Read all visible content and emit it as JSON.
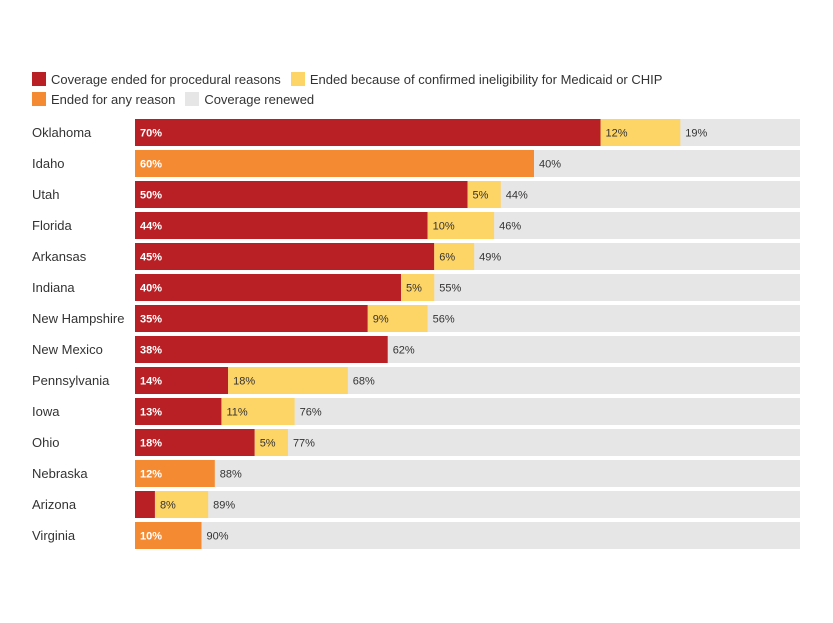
{
  "chart_data": {
    "type": "bar",
    "orientation": "horizontal",
    "stacked": true,
    "legend_position": "top-left",
    "colors": {
      "procedural": "#b82025",
      "ineligible": "#fdd466",
      "any_reason": "#f48b33",
      "renewed": "#e6e6e6"
    },
    "legend": [
      {
        "key": "procedural",
        "label": "Coverage ended for procedural reasons"
      },
      {
        "key": "ineligible",
        "label": "Ended because of confirmed ineligibility for Medicaid or CHIP"
      },
      {
        "key": "any_reason",
        "label": "Ended for any reason"
      },
      {
        "key": "renewed",
        "label": "Coverage renewed"
      }
    ],
    "categories": [
      "Oklahoma",
      "Idaho",
      "Utah",
      "Florida",
      "Arkansas",
      "Indiana",
      "New Hampshire",
      "New Mexico",
      "Pennsylvania",
      "Iowa",
      "Ohio",
      "Nebraska",
      "Arizona",
      "Virginia"
    ],
    "rows": [
      {
        "state": "Oklahoma",
        "procedural": 70,
        "ineligible": 12,
        "any_reason": 0,
        "renewed": 19
      },
      {
        "state": "Idaho",
        "procedural": 0,
        "ineligible": 0,
        "any_reason": 60,
        "renewed": 40
      },
      {
        "state": "Utah",
        "procedural": 50,
        "ineligible": 5,
        "any_reason": 0,
        "renewed": 44
      },
      {
        "state": "Florida",
        "procedural": 44,
        "ineligible": 10,
        "any_reason": 0,
        "renewed": 46
      },
      {
        "state": "Arkansas",
        "procedural": 45,
        "ineligible": 6,
        "any_reason": 0,
        "renewed": 49
      },
      {
        "state": "Indiana",
        "procedural": 40,
        "ineligible": 5,
        "any_reason": 0,
        "renewed": 55
      },
      {
        "state": "New Hampshire",
        "procedural": 35,
        "ineligible": 9,
        "any_reason": 0,
        "renewed": 56
      },
      {
        "state": "New Mexico",
        "procedural": 38,
        "ineligible": 0,
        "any_reason": 0,
        "renewed": 62
      },
      {
        "state": "Pennsylvania",
        "procedural": 14,
        "ineligible": 18,
        "any_reason": 0,
        "renewed": 68
      },
      {
        "state": "Iowa",
        "procedural": 13,
        "ineligible": 11,
        "any_reason": 0,
        "renewed": 76
      },
      {
        "state": "Ohio",
        "procedural": 18,
        "ineligible": 5,
        "any_reason": 0,
        "renewed": 77
      },
      {
        "state": "Nebraska",
        "procedural": 0,
        "ineligible": 0,
        "any_reason": 12,
        "renewed": 88
      },
      {
        "state": "Arizona",
        "procedural": 3,
        "ineligible": 8,
        "any_reason": 0,
        "renewed": 89
      },
      {
        "state": "Virginia",
        "procedural": 0,
        "ineligible": 0,
        "any_reason": 10,
        "renewed": 90
      }
    ],
    "value_labels": [
      {
        "procedural": "70%",
        "ineligible": "12%",
        "any_reason": "",
        "renewed": "19%"
      },
      {
        "procedural": "",
        "ineligible": "",
        "any_reason": "60%",
        "renewed": "40%"
      },
      {
        "procedural": "50%",
        "ineligible": "5%",
        "any_reason": "",
        "renewed": "44%"
      },
      {
        "procedural": "44%",
        "ineligible": "10%",
        "any_reason": "",
        "renewed": "46%"
      },
      {
        "procedural": "45%",
        "ineligible": "6%",
        "any_reason": "",
        "renewed": "49%"
      },
      {
        "procedural": "40%",
        "ineligible": "5%",
        "any_reason": "",
        "renewed": "55%"
      },
      {
        "procedural": "35%",
        "ineligible": "9%",
        "any_reason": "",
        "renewed": "56%"
      },
      {
        "procedural": "38%",
        "ineligible": "",
        "any_reason": "",
        "renewed": "62%"
      },
      {
        "procedural": "14%",
        "ineligible": "18%",
        "any_reason": "",
        "renewed": "68%"
      },
      {
        "procedural": "13%",
        "ineligible": "11%",
        "any_reason": "",
        "renewed": "76%"
      },
      {
        "procedural": "18%",
        "ineligible": "5%",
        "any_reason": "",
        "renewed": "77%"
      },
      {
        "procedural": "",
        "ineligible": "",
        "any_reason": "12%",
        "renewed": "88%"
      },
      {
        "procedural": "",
        "ineligible": "8%",
        "any_reason": "",
        "renewed": "89%"
      },
      {
        "procedural": "",
        "ineligible": "",
        "any_reason": "10%",
        "renewed": "90%"
      }
    ],
    "xlim": [
      0,
      100
    ]
  }
}
